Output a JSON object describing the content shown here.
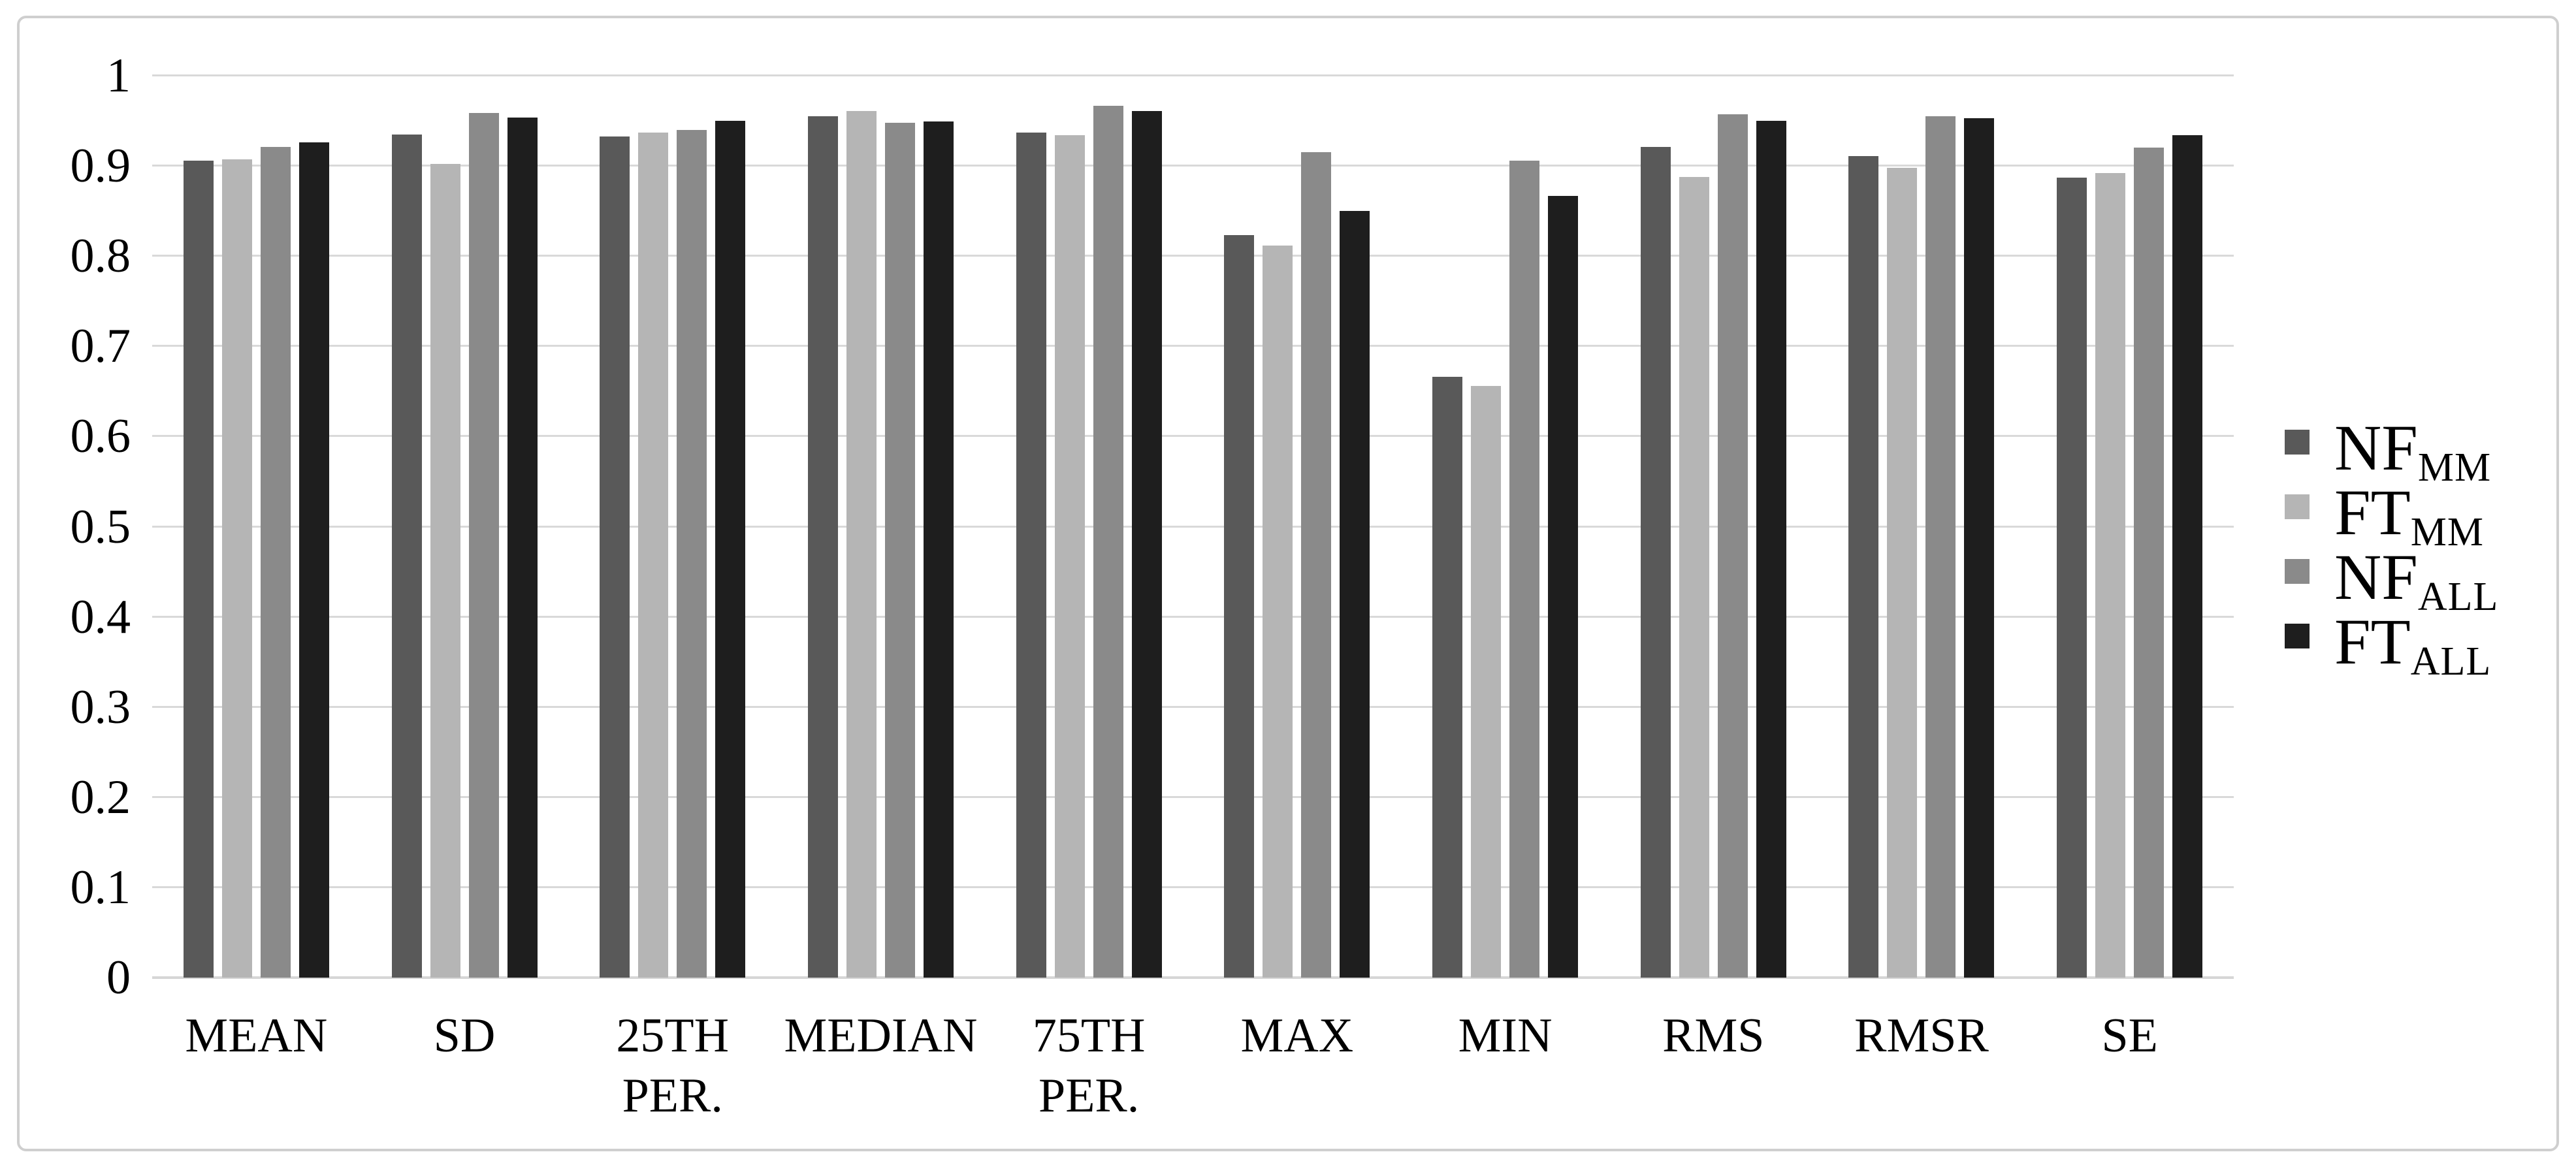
{
  "figure": {
    "background": "#ffffff",
    "border_color": "#cfcfcf"
  },
  "chart_data": {
    "type": "bar",
    "title": "",
    "xlabel": "",
    "ylabel": "",
    "categories": [
      "MEAN",
      "SD",
      "25TH\nPER.",
      "MEDIAN",
      "75TH\nPER.",
      "MAX",
      "MIN",
      "RMS",
      "RMSR",
      "SE"
    ],
    "series": [
      {
        "name": "NF_MM",
        "legend_main": "NF",
        "legend_sub": "MM",
        "color": "#595959",
        "values": [
          0.906,
          0.935,
          0.933,
          0.955,
          0.937,
          0.823,
          0.666,
          0.921,
          0.911,
          0.887
        ]
      },
      {
        "name": "FT_MM",
        "legend_main": "FT",
        "legend_sub": "MM",
        "color": "#b5b5b5",
        "values": [
          0.907,
          0.902,
          0.937,
          0.961,
          0.934,
          0.812,
          0.656,
          0.888,
          0.898,
          0.892
        ]
      },
      {
        "name": "NF_ALL",
        "legend_main": "NF",
        "legend_sub": "ALL",
        "color": "#8a8a8a",
        "values": [
          0.921,
          0.959,
          0.94,
          0.948,
          0.967,
          0.915,
          0.906,
          0.957,
          0.955,
          0.92
        ]
      },
      {
        "name": "FT_ALL",
        "legend_main": "FT",
        "legend_sub": "ALL",
        "color": "#1e1e1e",
        "values": [
          0.926,
          0.954,
          0.95,
          0.949,
          0.961,
          0.85,
          0.867,
          0.95,
          0.953,
          0.934
        ]
      }
    ],
    "ylim": [
      0,
      1
    ],
    "y_ticks": [
      "1",
      "0.9",
      "0.8",
      "0.7",
      "0.6",
      "0.5",
      "0.4",
      "0.3",
      "0.2",
      "0.1",
      "0"
    ],
    "grid": "horizontal",
    "gridline_color": "#d9d9d9",
    "axis_line_color": "#d6d6d6",
    "legend_position": "right"
  }
}
